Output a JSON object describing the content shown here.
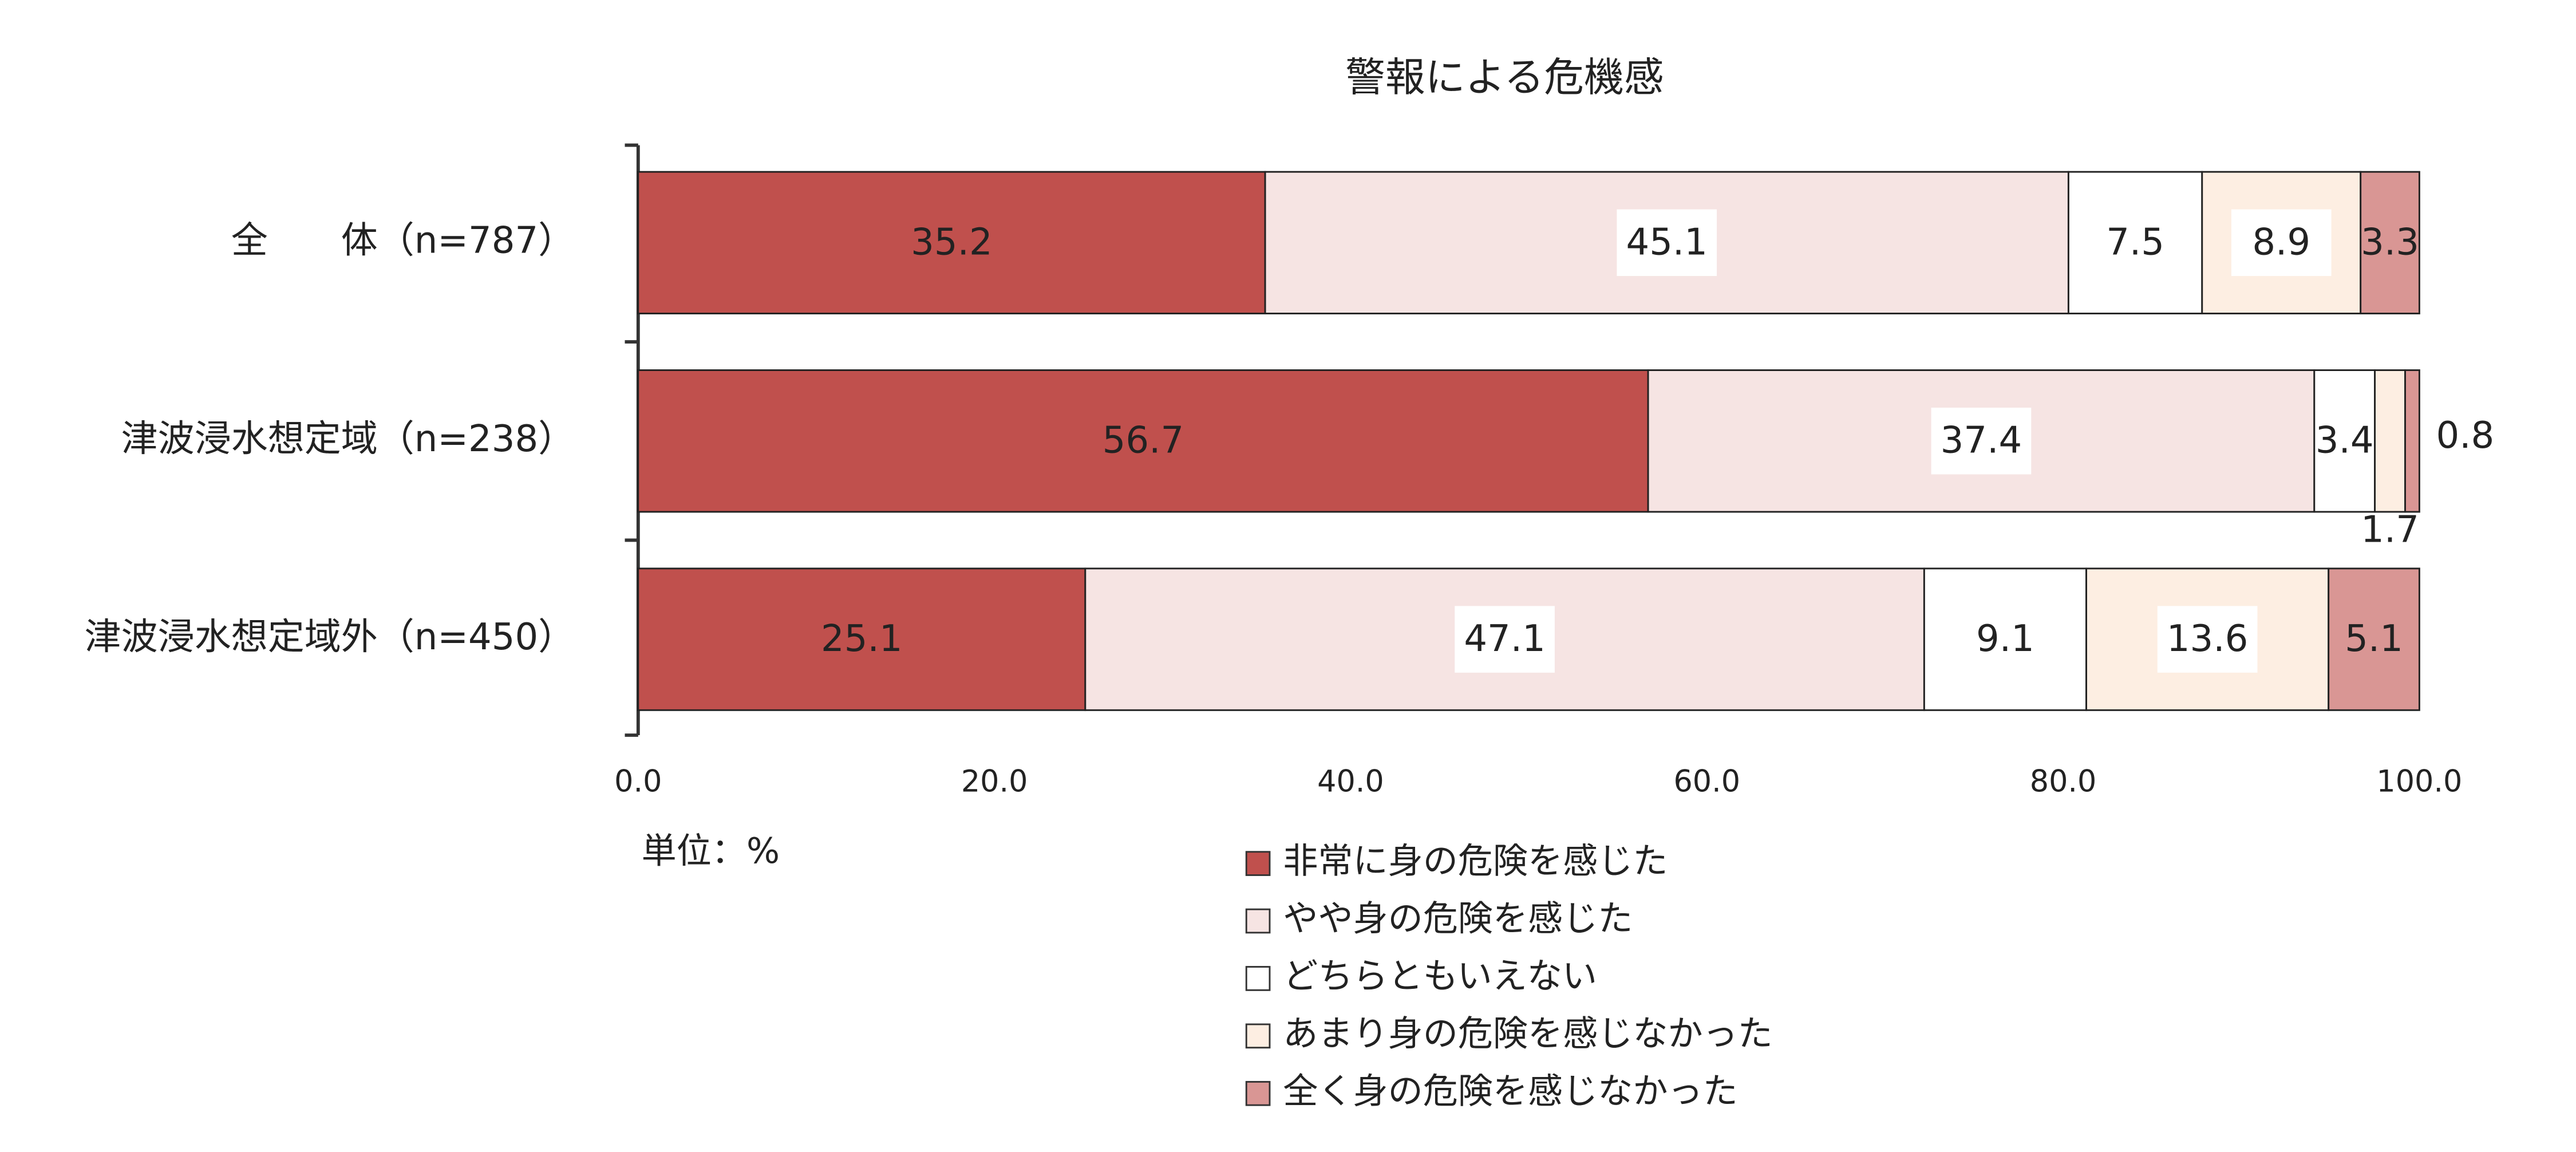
{
  "chart_data": {
    "type": "stacked-bar-horizontal",
    "title": "警報による危機感",
    "categories": [
      "全　　体（n=787）",
      "津波浸水想定域（n=238）",
      "津波浸水想定域外（n=450）"
    ],
    "series": [
      {
        "name": "非常に身の危険を感じた",
        "color": "#c0504d",
        "values": [
          35.2,
          56.7,
          25.1
        ]
      },
      {
        "name": "やや身の危険を感じた",
        "color": "#f6e4e3",
        "values": [
          45.1,
          37.4,
          47.1
        ]
      },
      {
        "name": "どちらともいえない",
        "color": "#ffffff",
        "values": [
          7.5,
          3.4,
          9.1
        ]
      },
      {
        "name": "あまり身の危険を感じなかった",
        "color": "#fdeee2",
        "values": [
          8.9,
          1.7,
          13.6
        ]
      },
      {
        "name": "全く身の危険を感じなかった",
        "color": "#d99694",
        "values": [
          3.3,
          0.8,
          5.1
        ]
      }
    ],
    "xlim": [
      0,
      100
    ],
    "xticks": [
      {
        "value": 0,
        "label": "0.0"
      },
      {
        "value": 20,
        "label": "20.0"
      },
      {
        "value": 40,
        "label": "40.0"
      },
      {
        "value": 60,
        "label": "60.0"
      },
      {
        "value": 80,
        "label": "80.0"
      },
      {
        "value": 100,
        "label": "100.0"
      }
    ],
    "unit_label": "単位：%"
  }
}
